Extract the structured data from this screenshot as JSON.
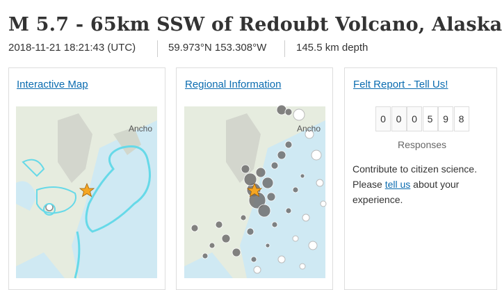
{
  "header": {
    "title": "M 5.7 - 65km SSW of Redoubt Volcano, Alaska",
    "time": "2018-11-21 18:21:43 (UTC)",
    "location": "59.973°N 153.308°W",
    "depth": "145.5 km depth"
  },
  "cards": [
    {
      "link": "Interactive Map",
      "map_label": "Ancho"
    },
    {
      "link": "Regional Information",
      "map_label": "Ancho"
    },
    {
      "link": "Felt Report - Tell Us!",
      "counter": [
        "0",
        "0",
        "0",
        "5",
        "9",
        "8"
      ],
      "counter_label": "Responses",
      "text_1": "Contribute to citizen science.",
      "text_2": "Please",
      "text_link": "tell us",
      "text_3": "about your",
      "text_4": "experience."
    }
  ]
}
